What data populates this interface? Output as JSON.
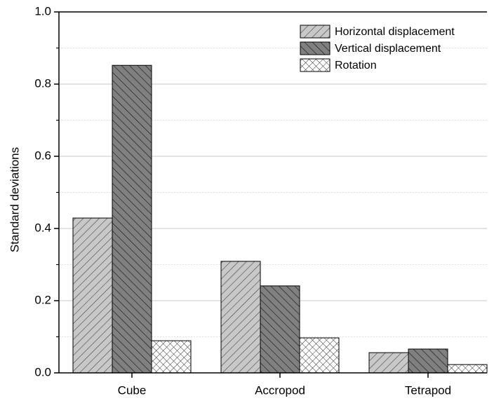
{
  "chart_data": {
    "type": "bar",
    "categories": [
      "Cube",
      "Accropod",
      "Tetrapod"
    ],
    "series": [
      {
        "name": "Horizontal displacement",
        "color": "#c8c8c8",
        "pattern": "diagonal-right",
        "values": [
          0.429,
          0.309,
          0.056
        ]
      },
      {
        "name": "Vertical displacement",
        "color": "#808080",
        "pattern": "diagonal-left",
        "values": [
          0.852,
          0.241,
          0.066
        ]
      },
      {
        "name": "Rotation",
        "color": "#ffffff",
        "pattern": "crosshatch",
        "values": [
          0.089,
          0.097,
          0.023
        ]
      }
    ],
    "ylabel": "Standard deviations",
    "ylim": [
      0,
      1.0
    ],
    "yticks": [
      {
        "value": 0,
        "label": "0.0"
      },
      0.2,
      0.4,
      0.6,
      0.8,
      {
        "value": 1.0,
        "label": "1.0"
      }
    ],
    "yminorticks": [
      0.1,
      0.3,
      0.5,
      0.7,
      0.9
    ],
    "grid": true,
    "legend": "upper right"
  }
}
